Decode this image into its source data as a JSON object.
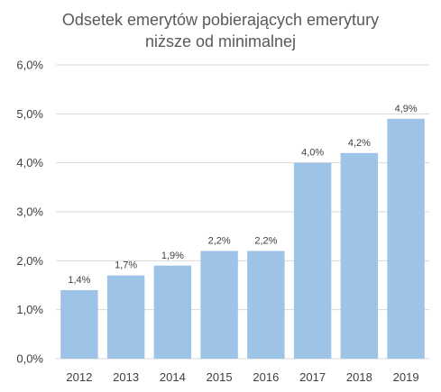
{
  "chart_data": {
    "type": "bar",
    "title_lines": [
      "Odsetek emerytów pobierających emerytury",
      "niższe od minimalnej"
    ],
    "categories": [
      "2012",
      "2013",
      "2014",
      "2015",
      "2016",
      "2017",
      "2018",
      "2019"
    ],
    "values": [
      1.4,
      1.7,
      1.9,
      2.2,
      2.2,
      4.0,
      4.2,
      4.9
    ],
    "value_labels": [
      "1,4%",
      "1,7%",
      "1,9%",
      "2,2%",
      "2,2%",
      "4,0%",
      "4,2%",
      "4,9%"
    ],
    "yticks": [
      0,
      1,
      2,
      3,
      4,
      5,
      6
    ],
    "ytick_labels": [
      "0,0%",
      "1,0%",
      "2,0%",
      "3,0%",
      "4,0%",
      "5,0%",
      "6,0%"
    ],
    "ylim": [
      0,
      6
    ],
    "grid": true,
    "legend": "none",
    "colors": {
      "bar": "#9dc3e6",
      "grid": "#d9d9d9",
      "text": "#404040",
      "title": "#595959"
    }
  }
}
